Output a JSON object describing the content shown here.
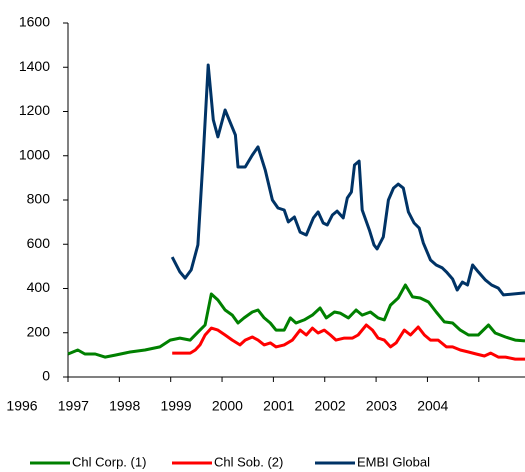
{
  "chart_data": {
    "type": "line",
    "xlim": [
      1996,
      2004.9
    ],
    "xticks": [
      1996,
      1997,
      1998,
      1999,
      2000,
      2001,
      2002,
      2003,
      2004
    ],
    "ylim": [
      0,
      1600
    ],
    "yticks": [
      0,
      200,
      400,
      600,
      800,
      1000,
      1200,
      1400,
      1600
    ],
    "grid": false,
    "legend": "bottom",
    "series": [
      {
        "name": "Chl Corp. (1)",
        "color": "#008000",
        "x": [
          1996.0,
          1996.19,
          1996.33,
          1996.53,
          1996.72,
          1996.92,
          1997.21,
          1997.5,
          1997.79,
          1997.99,
          1998.18,
          1998.38,
          1998.57,
          1998.67,
          1998.79,
          1998.92,
          1999.06,
          1999.2,
          1999.31,
          1999.43,
          1999.59,
          1999.7,
          1999.82,
          1999.94,
          2000.05,
          2000.21,
          2000.33,
          2000.44,
          2000.6,
          2000.76,
          2000.91,
          2001.03,
          2001.19,
          2001.3,
          2001.46,
          2001.61,
          2001.73,
          2001.89,
          2002.04,
          2002.16,
          2002.28,
          2002.43,
          2002.57,
          2002.71,
          2002.86,
          2003.02,
          2003.17,
          2003.33,
          2003.49,
          2003.64,
          2003.8,
          2003.99,
          2004.19,
          2004.32,
          2004.52,
          2004.71,
          2004.9
        ],
        "values": [
          104,
          122,
          104,
          104,
          90,
          99,
          113,
          122,
          136,
          167,
          176,
          167,
          212,
          235,
          375,
          348,
          303,
          280,
          244,
          267,
          294,
          303,
          267,
          244,
          212,
          212,
          267,
          244,
          258,
          280,
          312,
          267,
          294,
          289,
          267,
          303,
          280,
          294,
          267,
          258,
          325,
          357,
          416,
          362,
          357,
          339,
          294,
          249,
          244,
          212,
          190,
          190,
          235,
          199,
          181,
          167,
          163
        ]
      },
      {
        "name": "Chl Sob. (2)",
        "color": "#ff0000",
        "x": [
          1998.03,
          1998.38,
          1998.48,
          1998.57,
          1998.67,
          1998.79,
          1998.92,
          1999.06,
          1999.2,
          1999.35,
          1999.45,
          1999.59,
          1999.7,
          1999.82,
          1999.94,
          2000.05,
          2000.21,
          2000.37,
          2000.52,
          2000.64,
          2000.76,
          2000.87,
          2000.99,
          2001.11,
          2001.22,
          2001.38,
          2001.54,
          2001.65,
          2001.81,
          2001.93,
          2002.04,
          2002.16,
          2002.28,
          2002.39,
          2002.55,
          2002.67,
          2002.82,
          2002.94,
          2003.06,
          2003.21,
          2003.37,
          2003.49,
          2003.64,
          2003.8,
          2003.95,
          2004.11,
          2004.23,
          2004.38,
          2004.52,
          2004.71,
          2004.9
        ],
        "values": [
          108,
          108,
          122,
          145,
          190,
          221,
          212,
          190,
          167,
          145,
          167,
          181,
          167,
          145,
          154,
          136,
          145,
          167,
          212,
          190,
          221,
          199,
          212,
          190,
          167,
          176,
          176,
          190,
          235,
          212,
          176,
          167,
          136,
          154,
          212,
          190,
          226,
          190,
          167,
          167,
          136,
          136,
          122,
          113,
          104,
          95,
          108,
          90,
          90,
          81,
          81
        ]
      },
      {
        "name": "EMBI Global",
        "color": "#003366",
        "x": [
          1998.03,
          1998.18,
          1998.28,
          1998.4,
          1998.53,
          1998.63,
          1998.73,
          1998.83,
          1998.92,
          1999.06,
          1999.26,
          1999.31,
          1999.45,
          1999.59,
          1999.7,
          1999.84,
          1999.98,
          2000.09,
          2000.21,
          2000.29,
          2000.41,
          2000.52,
          2000.64,
          2000.78,
          2000.87,
          2000.97,
          2001.05,
          2001.15,
          2001.24,
          2001.36,
          2001.44,
          2001.52,
          2001.58,
          2001.67,
          2001.73,
          2001.87,
          2001.96,
          2002.02,
          2002.14,
          2002.24,
          2002.34,
          2002.43,
          2002.53,
          2002.63,
          2002.74,
          2002.84,
          2002.92,
          2003.06,
          2003.17,
          2003.29,
          2003.37,
          2003.49,
          2003.58,
          2003.68,
          2003.78,
          2003.88,
          2003.99,
          2004.13,
          2004.25,
          2004.38,
          2004.48,
          2004.9
        ],
        "values": [
          542,
          475,
          447,
          484,
          597,
          981,
          1410,
          1162,
          1085,
          1207,
          1094,
          949,
          949,
          1003,
          1040,
          936,
          800,
          764,
          755,
          701,
          723,
          655,
          642,
          719,
          746,
          696,
          687,
          732,
          750,
          719,
          809,
          836,
          958,
          976,
          755,
          664,
          597,
          579,
          633,
          800,
          854,
          872,
          854,
          746,
          696,
          673,
          606,
          529,
          506,
          493,
          475,
          443,
          393,
          429,
          416,
          506,
          475,
          438,
          416,
          402,
          371,
          380
        ]
      }
    ]
  }
}
